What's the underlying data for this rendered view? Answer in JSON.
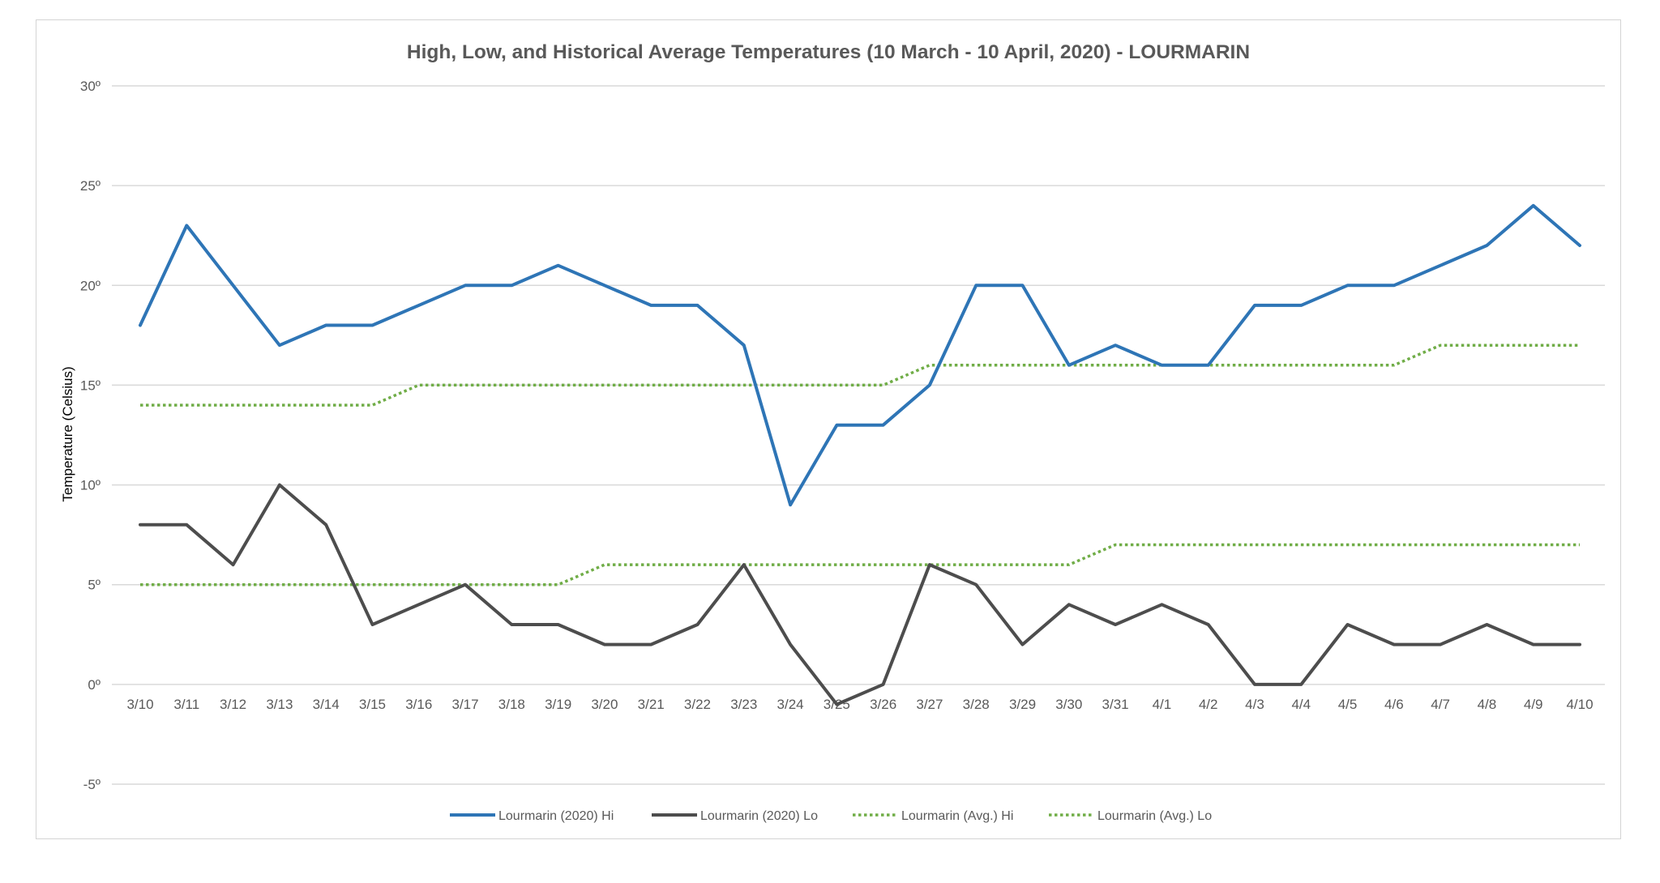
{
  "chart_data": {
    "type": "line",
    "title": "High, Low, and Historical Average Temperatures (10 March - 10 April, 2020) - LOURMARIN",
    "xlabel": "",
    "ylabel": "Temperature  (Celsius)",
    "ylim": [
      -5,
      30
    ],
    "y_ticks": [
      30,
      25,
      20,
      15,
      10,
      5,
      0,
      -5
    ],
    "y_tick_labels": [
      "30º",
      "25º",
      "20º",
      "15º",
      "10º",
      "5º",
      "0º",
      "-5º"
    ],
    "grid": true,
    "legend_position": "bottom",
    "categories": [
      "3/10",
      "3/11",
      "3/12",
      "3/13",
      "3/14",
      "3/15",
      "3/16",
      "3/17",
      "3/18",
      "3/19",
      "3/20",
      "3/21",
      "3/22",
      "3/23",
      "3/24",
      "3/25",
      "3/26",
      "3/27",
      "3/28",
      "3/29",
      "3/30",
      "3/31",
      "4/1",
      "4/2",
      "4/3",
      "4/4",
      "4/5",
      "4/6",
      "4/7",
      "4/8",
      "4/9",
      "4/10"
    ],
    "series": [
      {
        "name": "Lourmarin (2020) Hi",
        "color": "#2e75b6",
        "style": "solid",
        "values": [
          18,
          23,
          20,
          17,
          18,
          18,
          19,
          20,
          20,
          21,
          20,
          19,
          19,
          17,
          9,
          13,
          13,
          15,
          20,
          20,
          16,
          17,
          16,
          16,
          19,
          19,
          20,
          20,
          21,
          22,
          24,
          22
        ]
      },
      {
        "name": "Lourmarin (2020) Lo",
        "color": "#4d4d4d",
        "style": "solid",
        "values": [
          8,
          8,
          6,
          10,
          8,
          3,
          4,
          5,
          3,
          3,
          2,
          2,
          3,
          6,
          2,
          -1,
          0,
          6,
          5,
          2,
          4,
          3,
          4,
          3,
          0,
          0,
          3,
          2,
          2,
          3,
          2,
          2
        ]
      },
      {
        "name": "Lourmarin (Avg.) Hi",
        "color": "#70ad47",
        "style": "dotted",
        "values": [
          14,
          14,
          14,
          14,
          14,
          14,
          15,
          15,
          15,
          15,
          15,
          15,
          15,
          15,
          15,
          15,
          15,
          16,
          16,
          16,
          16,
          16,
          16,
          16,
          16,
          16,
          16,
          16,
          17,
          17,
          17,
          17
        ]
      },
      {
        "name": "Lourmarin (Avg.) Lo",
        "color": "#70ad47",
        "style": "dotted",
        "values": [
          5,
          5,
          5,
          5,
          5,
          5,
          5,
          5,
          5,
          5,
          6,
          6,
          6,
          6,
          6,
          6,
          6,
          6,
          6,
          6,
          6,
          7,
          7,
          7,
          7,
          7,
          7,
          7,
          7,
          7,
          7,
          7
        ]
      }
    ]
  }
}
